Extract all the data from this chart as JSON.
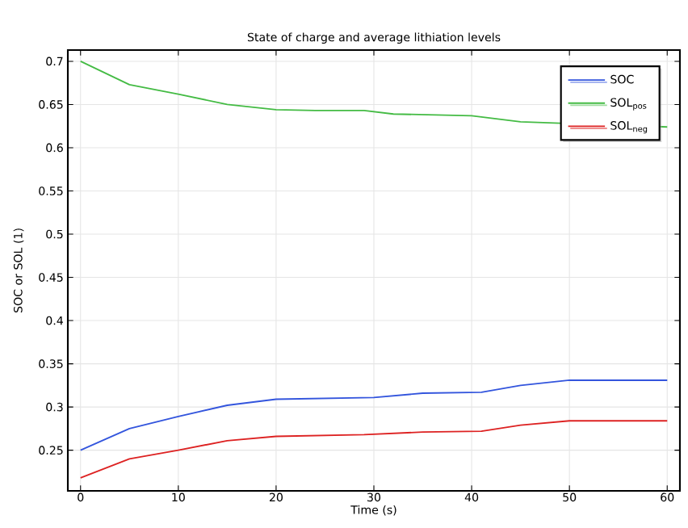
{
  "chart_data": {
    "type": "line",
    "title": "State of charge and average lithiation levels",
    "xlabel": "Time (s)",
    "ylabel": "SOC or SOL (1)",
    "xlim": [
      -1.3,
      61.3
    ],
    "ylim": [
      0.203,
      0.713
    ],
    "xticks": [
      0,
      10,
      20,
      30,
      40,
      50,
      60
    ],
    "yticks": [
      0.25,
      0.3,
      0.35,
      0.4,
      0.45,
      0.5,
      0.55,
      0.6,
      0.65,
      0.7
    ],
    "grid": true,
    "legend": "top right",
    "line_style": "solid",
    "marker": "none",
    "series": [
      {
        "name": "SOC",
        "color": "#3355dd",
        "x": [
          0,
          5,
          10,
          15,
          20,
          30,
          35,
          41,
          45,
          50,
          60
        ],
        "values": [
          0.25,
          0.275,
          0.289,
          0.302,
          0.309,
          0.311,
          0.316,
          0.317,
          0.325,
          0.331,
          0.331
        ]
      },
      {
        "name": "SOL$_{pos}$",
        "color": "#44bb44",
        "x": [
          0,
          5,
          10,
          15,
          20,
          24,
          29,
          32,
          40,
          45,
          60
        ],
        "values": [
          0.7,
          0.673,
          0.662,
          0.65,
          0.644,
          0.643,
          0.643,
          0.639,
          0.637,
          0.63,
          0.624
        ]
      },
      {
        "name": "SOL$_{neg}$",
        "color": "#dd2222",
        "x": [
          0,
          5,
          10,
          15,
          20,
          29,
          35,
          41,
          45,
          50,
          60
        ],
        "values": [
          0.218,
          0.24,
          0.25,
          0.261,
          0.266,
          0.268,
          0.271,
          0.272,
          0.279,
          0.284,
          0.284
        ]
      }
    ]
  }
}
